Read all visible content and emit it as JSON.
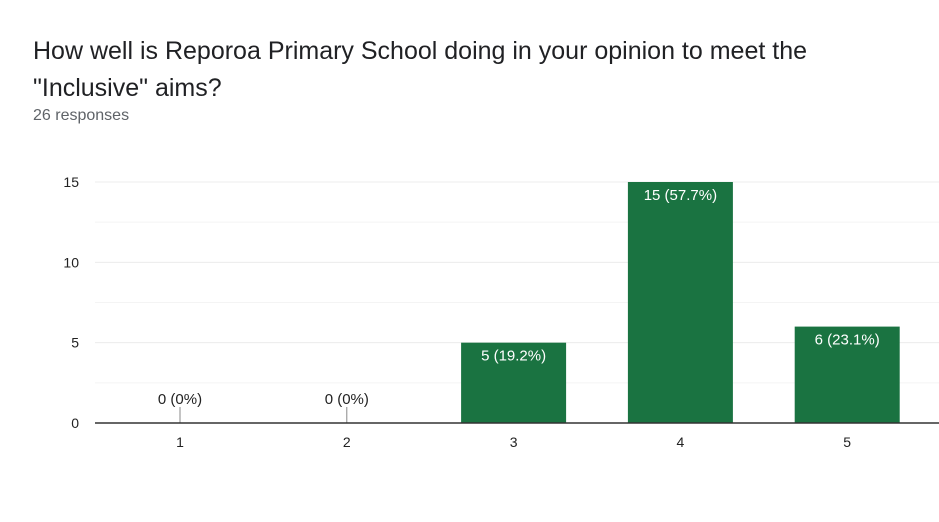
{
  "header": {
    "title": "How well is Reporoa Primary School doing in your opinion to meet the \"Inclusive\" aims?",
    "responses": "26 responses"
  },
  "colors": {
    "bar": "#1a7341",
    "bar_label": "#ffffff",
    "outside_label": "#222222",
    "grid": "#ececec",
    "axis": "#333333"
  },
  "chart_data": {
    "type": "bar",
    "title": "",
    "xlabel": "",
    "ylabel": "",
    "categories": [
      "1",
      "2",
      "3",
      "4",
      "5"
    ],
    "values": [
      0,
      0,
      5,
      15,
      6
    ],
    "data_labels": [
      "0 (0%)",
      "0 (0%)",
      "5 (19.2%)",
      "15 (57.7%)",
      "6 (23.1%)"
    ],
    "ylim": [
      0,
      15
    ],
    "yticks": [
      0,
      5,
      10,
      15
    ],
    "grid": true
  }
}
